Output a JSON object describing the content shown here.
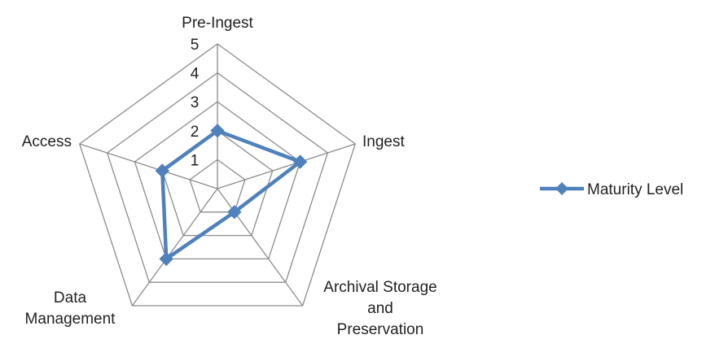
{
  "chart_data": {
    "type": "radar",
    "categories": [
      "Pre-Ingest",
      "Ingest",
      "Archival Storage and Preservation",
      "Data Management",
      "Access"
    ],
    "series": [
      {
        "name": "Maturity Level",
        "values": [
          2,
          3,
          1,
          3,
          2
        ],
        "color": "#4F81BD"
      }
    ],
    "rlim": [
      0,
      5
    ],
    "ticks": [
      1,
      2,
      3,
      4,
      5
    ],
    "grid": true,
    "grid_color": "#8c8c8c",
    "legend": "right"
  }
}
